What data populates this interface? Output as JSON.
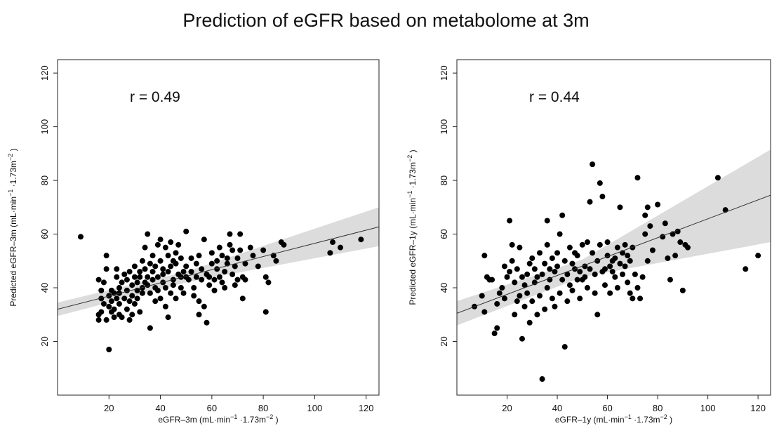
{
  "title": "Prediction of eGFR based on metabolome at 3m",
  "chart_data": [
    {
      "type": "scatter",
      "annotation": "r = 0.49",
      "xlabel": {
        "main": "eGFR–3m (mL·min",
        "sup1": "−1",
        "mid": " ·1.73m",
        "sup2": "−2",
        "end": " )"
      },
      "ylabel": {
        "main": "Predicted eGFR–3m (mL·min",
        "sup1": "−1",
        "mid": " ·1.73m",
        "sup2": "−2",
        "end": " )"
      },
      "xlim": [
        0,
        125
      ],
      "ylim": [
        0,
        125
      ],
      "xticks": [
        20,
        40,
        60,
        80,
        100,
        120
      ],
      "yticks": [
        20,
        40,
        60,
        80,
        100,
        120
      ],
      "fit_line": {
        "x": [
          0,
          125
        ],
        "y": [
          32.0,
          62.7
        ]
      },
      "confidence_band": {
        "x": [
          0,
          50,
          125
        ],
        "upper": [
          34.5,
          46.0,
          70.0
        ],
        "lower": [
          29.5,
          42.0,
          55.5
        ]
      },
      "points": [
        [
          9,
          59
        ],
        [
          16,
          28
        ],
        [
          16,
          30
        ],
        [
          16,
          43
        ],
        [
          17,
          31
        ],
        [
          17,
          36
        ],
        [
          17,
          39
        ],
        [
          18,
          34
        ],
        [
          18,
          42
        ],
        [
          19,
          52
        ],
        [
          19,
          47
        ],
        [
          19,
          28
        ],
        [
          20,
          17
        ],
        [
          20,
          33
        ],
        [
          20,
          37
        ],
        [
          21,
          31
        ],
        [
          21,
          39
        ],
        [
          21,
          35
        ],
        [
          22,
          29
        ],
        [
          22,
          38
        ],
        [
          22,
          32
        ],
        [
          23,
          36
        ],
        [
          23,
          44
        ],
        [
          23,
          47
        ],
        [
          24,
          30
        ],
        [
          24,
          40
        ],
        [
          24,
          34
        ],
        [
          24,
          38
        ],
        [
          25,
          29
        ],
        [
          25,
          42
        ],
        [
          26,
          36
        ],
        [
          26,
          45
        ],
        [
          27,
          32
        ],
        [
          27,
          39
        ],
        [
          27,
          43
        ],
        [
          28,
          28
        ],
        [
          28,
          35
        ],
        [
          28,
          46
        ],
        [
          29,
          30
        ],
        [
          29,
          37
        ],
        [
          29,
          41
        ],
        [
          30,
          34
        ],
        [
          30,
          44
        ],
        [
          30,
          48
        ],
        [
          31,
          39
        ],
        [
          31,
          42
        ],
        [
          31,
          36
        ],
        [
          32,
          31
        ],
        [
          32,
          44
        ],
        [
          32,
          46
        ],
        [
          33,
          40
        ],
        [
          33,
          38
        ],
        [
          33,
          50
        ],
        [
          34,
          42
        ],
        [
          34,
          47
        ],
        [
          34,
          55
        ],
        [
          35,
          44
        ],
        [
          35,
          41
        ],
        [
          35,
          60
        ],
        [
          36,
          25
        ],
        [
          36,
          38
        ],
        [
          36,
          49
        ],
        [
          37,
          52
        ],
        [
          37,
          46
        ],
        [
          37,
          43
        ],
        [
          38,
          40
        ],
        [
          38,
          48
        ],
        [
          38,
          35
        ],
        [
          39,
          56
        ],
        [
          39,
          44
        ],
        [
          39,
          39
        ],
        [
          40,
          50
        ],
        [
          40,
          36
        ],
        [
          40,
          58
        ],
        [
          41,
          45
        ],
        [
          41,
          42
        ],
        [
          41,
          47
        ],
        [
          42,
          33
        ],
        [
          42,
          55
        ],
        [
          42,
          40
        ],
        [
          43,
          29
        ],
        [
          43,
          46
        ],
        [
          43,
          52
        ],
        [
          44,
          48
        ],
        [
          44,
          57
        ],
        [
          44,
          38
        ],
        [
          45,
          43
        ],
        [
          45,
          41
        ],
        [
          45,
          50
        ],
        [
          46,
          49
        ],
        [
          46,
          53
        ],
        [
          46,
          36
        ],
        [
          47,
          45
        ],
        [
          47,
          56
        ],
        [
          48,
          40
        ],
        [
          48,
          51
        ],
        [
          48,
          44
        ],
        [
          49,
          46
        ],
        [
          49,
          38
        ],
        [
          50,
          61
        ],
        [
          50,
          44
        ],
        [
          50,
          48
        ],
        [
          51,
          43
        ],
        [
          52,
          51
        ],
        [
          52,
          46
        ],
        [
          53,
          40
        ],
        [
          53,
          37
        ],
        [
          54,
          44
        ],
        [
          54,
          49
        ],
        [
          55,
          30
        ],
        [
          55,
          52
        ],
        [
          55,
          35
        ],
        [
          56,
          43
        ],
        [
          56,
          47
        ],
        [
          57,
          58
        ],
        [
          57,
          33
        ],
        [
          58,
          27
        ],
        [
          58,
          45
        ],
        [
          59,
          44
        ],
        [
          59,
          41
        ],
        [
          60,
          53
        ],
        [
          60,
          49
        ],
        [
          61,
          43
        ],
        [
          61,
          39
        ],
        [
          62,
          50
        ],
        [
          62,
          47
        ],
        [
          63,
          55
        ],
        [
          63,
          44
        ],
        [
          64,
          52
        ],
        [
          64,
          42
        ],
        [
          65,
          40
        ],
        [
          65,
          46
        ],
        [
          66,
          51
        ],
        [
          66,
          49
        ],
        [
          67,
          60
        ],
        [
          67,
          56
        ],
        [
          68,
          54
        ],
        [
          68,
          45
        ],
        [
          69,
          48
        ],
        [
          69,
          41
        ],
        [
          70,
          51
        ],
        [
          70,
          43
        ],
        [
          71,
          60
        ],
        [
          71,
          54
        ],
        [
          72,
          44
        ],
        [
          72,
          36
        ],
        [
          73,
          49
        ],
        [
          73,
          43
        ],
        [
          75,
          55
        ],
        [
          76,
          52
        ],
        [
          78,
          48
        ],
        [
          80,
          54
        ],
        [
          81,
          44
        ],
        [
          81,
          31
        ],
        [
          82,
          42
        ],
        [
          84,
          52
        ],
        [
          85,
          50
        ],
        [
          87,
          57
        ],
        [
          88,
          56
        ],
        [
          106,
          53
        ],
        [
          107,
          57
        ],
        [
          110,
          55
        ],
        [
          118,
          58
        ]
      ]
    },
    {
      "type": "scatter",
      "annotation": "r = 0.44",
      "xlabel": {
        "main": "eGFR–1y (mL·min",
        "sup1": "−1",
        "mid": " ·1.73m",
        "sup2": "−2",
        "end": " )"
      },
      "ylabel": {
        "main": "Predicted eGFR–1y (mL·min",
        "sup1": "−1",
        "mid": " ·1.73m",
        "sup2": "−2",
        "end": " )"
      },
      "xlim": [
        0,
        125
      ],
      "ylim": [
        0,
        125
      ],
      "xticks": [
        20,
        40,
        60,
        80,
        100,
        120
      ],
      "yticks": [
        20,
        40,
        60,
        80,
        100,
        120
      ],
      "fit_line": {
        "x": [
          0,
          125
        ],
        "y": [
          30.5,
          74.5
        ]
      },
      "confidence_band": {
        "x": [
          0,
          50,
          125
        ],
        "upper": [
          35.0,
          50.5,
          91.5
        ],
        "lower": [
          26.0,
          44.0,
          57.0
        ]
      },
      "points": [
        [
          7,
          33
        ],
        [
          10,
          37
        ],
        [
          11,
          31
        ],
        [
          11,
          52
        ],
        [
          12,
          44
        ],
        [
          13,
          43
        ],
        [
          14,
          43
        ],
        [
          15,
          23
        ],
        [
          16,
          25
        ],
        [
          16,
          34
        ],
        [
          17,
          38
        ],
        [
          18,
          40
        ],
        [
          19,
          48
        ],
        [
          19,
          36
        ],
        [
          20,
          44
        ],
        [
          21,
          46
        ],
        [
          21,
          65
        ],
        [
          22,
          56
        ],
        [
          22,
          50
        ],
        [
          23,
          30
        ],
        [
          23,
          42
        ],
        [
          24,
          35
        ],
        [
          24,
          47
        ],
        [
          25,
          37
        ],
        [
          25,
          55
        ],
        [
          26,
          21
        ],
        [
          26,
          44
        ],
        [
          27,
          33
        ],
        [
          27,
          41
        ],
        [
          28,
          38
        ],
        [
          28,
          45
        ],
        [
          29,
          49
        ],
        [
          29,
          27
        ],
        [
          30,
          35
        ],
        [
          30,
          51
        ],
        [
          31,
          42
        ],
        [
          31,
          47
        ],
        [
          32,
          30
        ],
        [
          32,
          44
        ],
        [
          33,
          53
        ],
        [
          33,
          37
        ],
        [
          34,
          6
        ],
        [
          34,
          45
        ],
        [
          35,
          32
        ],
        [
          35,
          49
        ],
        [
          36,
          40
        ],
        [
          36,
          56
        ],
        [
          36,
          65
        ],
        [
          37,
          43
        ],
        [
          37,
          47
        ],
        [
          38,
          36
        ],
        [
          38,
          51
        ],
        [
          39,
          46
        ],
        [
          39,
          33
        ],
        [
          40,
          48
        ],
        [
          40,
          53
        ],
        [
          41,
          38
        ],
        [
          41,
          60
        ],
        [
          42,
          43
        ],
        [
          42,
          67
        ],
        [
          43,
          18
        ],
        [
          43,
          50
        ],
        [
          44,
          45
        ],
        [
          44,
          35
        ],
        [
          45,
          55
        ],
        [
          45,
          41
        ],
        [
          46,
          49
        ],
        [
          46,
          39
        ],
        [
          47,
          53
        ],
        [
          47,
          47
        ],
        [
          48,
          43
        ],
        [
          48,
          52
        ],
        [
          49,
          46
        ],
        [
          49,
          36
        ],
        [
          50,
          56
        ],
        [
          50,
          43
        ],
        [
          51,
          48
        ],
        [
          51,
          44
        ],
        [
          52,
          57
        ],
        [
          52,
          40
        ],
        [
          53,
          47
        ],
        [
          53,
          72
        ],
        [
          54,
          86
        ],
        [
          54,
          53
        ],
        [
          55,
          45
        ],
        [
          55,
          38
        ],
        [
          56,
          30
        ],
        [
          56,
          50
        ],
        [
          57,
          56
        ],
        [
          57,
          79
        ],
        [
          58,
          74
        ],
        [
          58,
          46
        ],
        [
          59,
          47
        ],
        [
          59,
          41
        ],
        [
          60,
          57
        ],
        [
          60,
          52
        ],
        [
          61,
          38
        ],
        [
          61,
          48
        ],
        [
          62,
          50
        ],
        [
          62,
          46
        ],
        [
          63,
          51
        ],
        [
          63,
          44
        ],
        [
          64,
          55
        ],
        [
          64,
          40
        ],
        [
          65,
          70
        ],
        [
          65,
          49
        ],
        [
          66,
          53
        ],
        [
          66,
          45
        ],
        [
          67,
          56
        ],
        [
          67,
          48
        ],
        [
          68,
          52
        ],
        [
          68,
          42
        ],
        [
          69,
          50
        ],
        [
          69,
          38
        ],
        [
          70,
          55
        ],
        [
          70,
          36
        ],
        [
          71,
          45
        ],
        [
          72,
          81
        ],
        [
          72,
          40
        ],
        [
          73,
          36
        ],
        [
          74,
          44
        ],
        [
          75,
          60
        ],
        [
          75,
          67
        ],
        [
          76,
          70
        ],
        [
          76,
          50
        ],
        [
          77,
          63
        ],
        [
          78,
          54
        ],
        [
          80,
          71
        ],
        [
          82,
          59
        ],
        [
          83,
          64
        ],
        [
          84,
          51
        ],
        [
          85,
          43
        ],
        [
          86,
          60
        ],
        [
          87,
          52
        ],
        [
          88,
          61
        ],
        [
          89,
          57
        ],
        [
          90,
          39
        ],
        [
          91,
          56
        ],
        [
          92,
          55
        ],
        [
          104,
          81
        ],
        [
          107,
          69
        ],
        [
          115,
          47
        ],
        [
          120,
          52
        ]
      ]
    }
  ]
}
